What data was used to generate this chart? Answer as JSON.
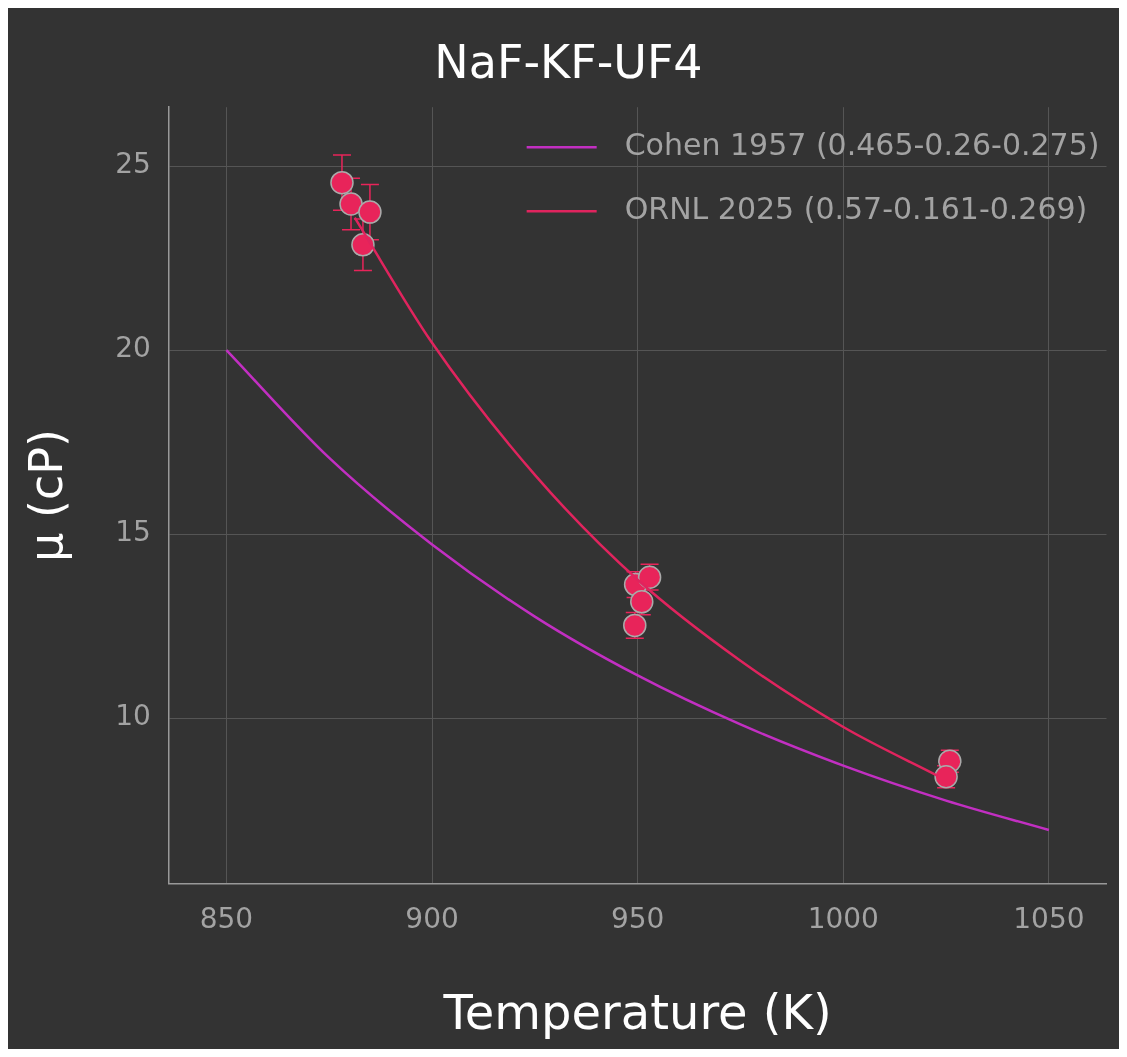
{
  "chart_data": {
    "type": "line",
    "title": "NaF-KF-UF4",
    "xlabel": "Temperature (K)",
    "ylabel": "μ (cP)",
    "xlim": [
      836,
      1064
    ],
    "xticks": [
      850,
      900,
      950,
      1000,
      1050
    ],
    "ylim": [
      5.5,
      26.6
    ],
    "yticks": [
      10,
      15,
      20,
      25
    ],
    "grid": true,
    "legend": "top right",
    "line_style": "solid",
    "series": [
      {
        "name": "Cohen 1957 (0.465-0.26-0.275)",
        "color": "#c22fc2",
        "type": "line",
        "marker": "none",
        "x": [
          850,
          875,
          900,
          925,
          950,
          975,
          1000,
          1025,
          1050
        ],
        "values": [
          20,
          17.07,
          14.72,
          12.76,
          11.16,
          9.83,
          8.71,
          7.76,
          6.96
        ]
      },
      {
        "name": "ORNL 2025 (0.57-0.161-0.269)",
        "color": "#e0245e",
        "type": "line",
        "marker": "none",
        "x": [
          881.2,
          900,
          925,
          950,
          975,
          1000,
          1023
        ],
        "values": [
          23.6,
          20.2,
          16.61,
          13.76,
          11.56,
          9.76,
          8.43
        ]
      },
      {
        "color": "#e8245a",
        "type": "scatter",
        "marker": "circle",
        "x": [
          878.1,
          880.3,
          884.9,
          883.2,
          949.5,
          952.9,
          951.0,
          949.3,
          1024.5,
          1025.9,
          1025.0
        ],
        "values": [
          24.55,
          23.97,
          23.75,
          22.86,
          13.63,
          13.83,
          13.16,
          12.52,
          null,
          8.83,
          8.41
        ],
        "errors": [
          0.75,
          0.7,
          0.75,
          0.7,
          0.35,
          0.35,
          0.35,
          0.35,
          null,
          0.3,
          0.3
        ]
      }
    ]
  }
}
